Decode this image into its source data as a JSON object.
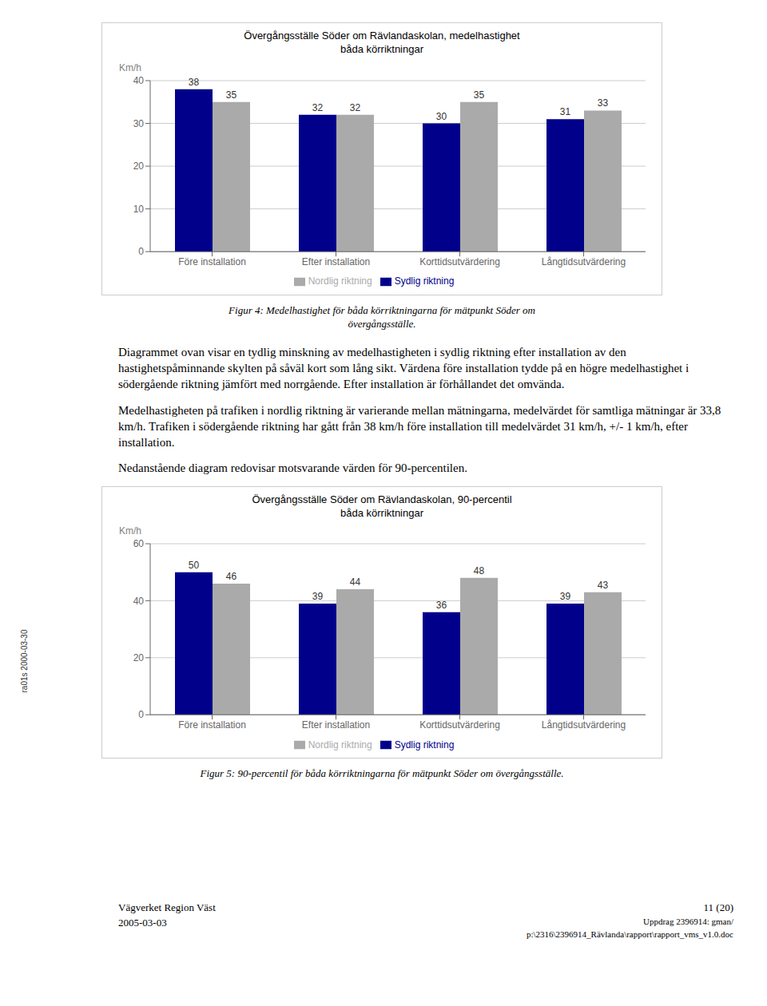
{
  "chart_data": [
    {
      "type": "bar",
      "title": "Övergångsställe Söder om Rävlandaskolan, medelhastighet\nbåda körriktningar",
      "ylabel": "Km/h",
      "categories": [
        "Före installation",
        "Efter installation",
        "Korttidsutvärdering",
        "Långtidsutvärdering"
      ],
      "series": [
        {
          "name": "Sydlig riktning",
          "color": "#00008B",
          "values": [
            38,
            32,
            30,
            31
          ]
        },
        {
          "name": "Nordlig riktning",
          "color": "#aaaaaa",
          "values": [
            35,
            32,
            35,
            33
          ]
        }
      ],
      "ylim": [
        0,
        40
      ],
      "yticks": [
        0,
        10,
        20,
        30,
        40
      ],
      "grid": true,
      "legend": "bottom",
      "data_labels": true,
      "annotations": [
        "Figur 4: Medelhastighet för båda körriktningarna för mätpunkt Söder om",
        "övergångsställe.",
        "Diagrammet ovan visar en tydlig minskning av medelhastigheten i sydlig riktning efter installation av den hastighetspåminnande skylten på såväl kort som lång sikt. Värdena före installation tydde på en högre medelhastighet i södergående riktning jämfört med norrgående. Efter installation är förhållandet det omvända.",
        "Medelhastigheten på trafiken i nordlig riktning är varierande mellan mätningarna, medelvärdet för samtliga mätningar är 33,8 km/h. Trafiken i södergående riktning har gått från 38 km/h före installation till medelvärdet 31 km/h, +/- 1 km/h, efter installation.",
        "Nedanstående diagram redovisar motsvarande värden för 90-percentilen."
      ]
    },
    {
      "type": "bar",
      "title": "Övergångsställe Söder om Rävlandaskolan, 90-percentil\nbåda körriktningar",
      "ylabel": "Km/h",
      "categories": [
        "Före installation",
        "Efter installation",
        "Korttidsutvärdering",
        "Långtidsutvärdering"
      ],
      "series": [
        {
          "name": "Sydlig riktning",
          "color": "#00008B",
          "values": [
            50,
            39,
            36,
            39
          ]
        },
        {
          "name": "Nordlig riktning",
          "color": "#aaaaaa",
          "values": [
            46,
            44,
            48,
            43
          ]
        }
      ],
      "ylim": [
        0,
        60
      ],
      "yticks": [
        0,
        20,
        40,
        60
      ],
      "grid": true,
      "legend": "bottom",
      "data_labels": true,
      "annotations": [
        "Figur 5: 90-percentil för båda körriktningarna för mätpunkt Söder om övergångsställe.",
        "Vägverket Region Väst",
        "2005-03-03",
        "11 (20)",
        "Uppdrag 2396914: gman/",
        "p:\\2316\\2396914_Rävlanda\\rapport\\rapport_vms_v1.0.doc",
        "ra01s 2000-03-30"
      ]
    }
  ]
}
